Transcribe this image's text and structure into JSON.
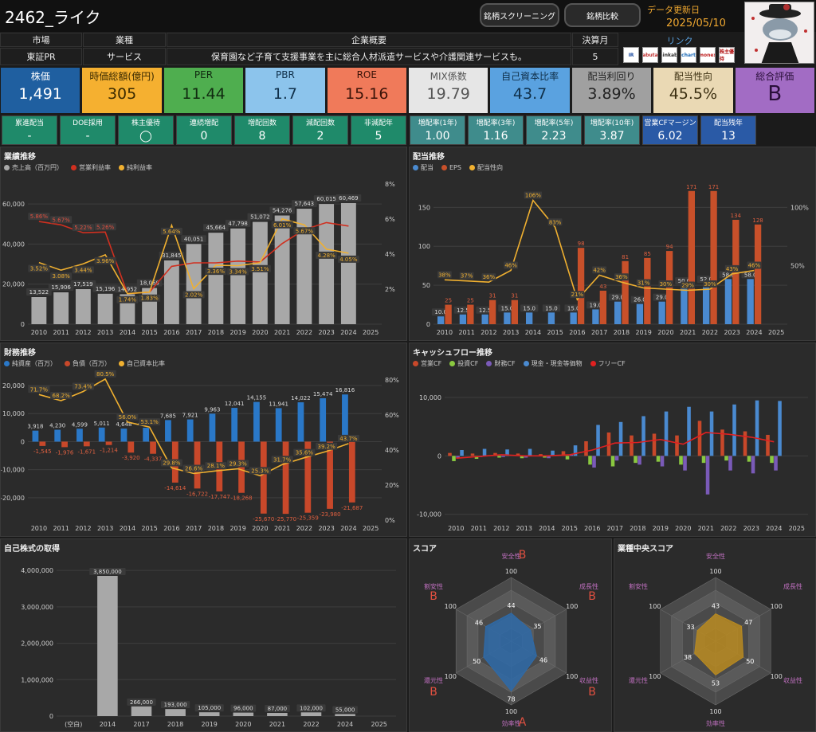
{
  "header": {
    "title": "2462_ライク",
    "screening_label": "銘柄スクリーニング",
    "compare_label": "銘柄比較",
    "update_label": "データ更新日",
    "update_date": "2025/05/10"
  },
  "info": {
    "market_h": "市場",
    "market_v": "東証PR",
    "industry_h": "業種",
    "industry_v": "サービス",
    "overview_h": "企業概要",
    "overview_v": "保育園など子育て支援事業を主に総合人材派遣サービスや介護関連サービスも。",
    "fiscal_h": "決算月",
    "fiscal_v": "5",
    "link_h": "リンク",
    "link_icons": [
      "IR",
      "kabutan",
      "minkabu",
      "chart",
      "monex",
      "株主優待"
    ]
  },
  "metrics": [
    {
      "label": "株価",
      "value": "1,491",
      "bg": "#1f5fa0",
      "fg": "#ffffff"
    },
    {
      "label": "時価総額(億円)",
      "value": "305",
      "bg": "#f5b030",
      "fg": "#3a2a00"
    },
    {
      "label": "PER",
      "value": "11.44",
      "bg": "#4fae4f",
      "fg": "#102a10"
    },
    {
      "label": "PBR",
      "value": "1.7",
      "bg": "#8cc4ec",
      "fg": "#10304a"
    },
    {
      "label": "ROE",
      "value": "15.16",
      "bg": "#f07a5a",
      "fg": "#3a1308"
    },
    {
      "label": "MIX係数",
      "value": "19.79",
      "bg": "#e6e6e6",
      "fg": "#555555"
    },
    {
      "label": "自己資本比率",
      "value": "43.7",
      "bg": "#5aa2e0",
      "fg": "#10304a"
    },
    {
      "label": "配当利回り",
      "value": "3.89%",
      "bg": "#a0a0a0",
      "fg": "#222222"
    },
    {
      "label": "配当性向",
      "value": "45.5%",
      "bg": "#ead9b4",
      "fg": "#3a2e10"
    },
    {
      "label": "総合評価",
      "value": "B",
      "bg": "#a26cc4",
      "fg": "#2a0f3a"
    }
  ],
  "kpis": [
    {
      "label": "累進配当",
      "value": "-",
      "bg": "#1f8a6a"
    },
    {
      "label": "DOE採用",
      "value": "-",
      "bg": "#1f8a6a"
    },
    {
      "label": "株主優待",
      "value": "◯",
      "bg": "#1f8a6a"
    },
    {
      "label": "連続増配",
      "value": "0",
      "bg": "#1f8a6a"
    },
    {
      "label": "増配回数",
      "value": "8",
      "bg": "#1f8a6a"
    },
    {
      "label": "減配回数",
      "value": "2",
      "bg": "#1f8a6a"
    },
    {
      "label": "非減配年",
      "value": "5",
      "bg": "#1f8a6a"
    },
    {
      "label": "増配率(1年)",
      "value": "1.00",
      "bg": "#3f8c8c"
    },
    {
      "label": "増配率(3年)",
      "value": "1.16",
      "bg": "#3f8c8c"
    },
    {
      "label": "増配率(5年)",
      "value": "2.23",
      "bg": "#3f8c8c"
    },
    {
      "label": "増配率(10年)",
      "value": "3.87",
      "bg": "#3f8c8c"
    },
    {
      "label": "営業CFマージン",
      "value": "6.02",
      "bg": "#2a5aa6"
    },
    {
      "label": "配当残年",
      "value": "13",
      "bg": "#2a5aa6"
    }
  ],
  "chart_data": [
    {
      "id": "performance",
      "type": "bar",
      "title": "業績推移",
      "categories": [
        "2010",
        "2011",
        "2012",
        "2013",
        "2014",
        "2015",
        "2016",
        "2017",
        "2018",
        "2019",
        "2020",
        "2021",
        "2022",
        "2023",
        "2024",
        "2025"
      ],
      "series": [
        {
          "name": "売上高（百万円）",
          "values": [
            13522,
            15906,
            17519,
            15196,
            14952,
            18068,
            31845,
            40051,
            45664,
            47798,
            51072,
            54276,
            57643,
            60015,
            60469,
            null
          ],
          "color": "#a8a8a8"
        },
        {
          "name": "営業利益率",
          "values": [
            5.86,
            5.67,
            5.22,
            5.26,
            1.74,
            1.83,
            3.3,
            3.5,
            3.5,
            3.6,
            3.55,
            4.6,
            5.4,
            5.8,
            5.6,
            null
          ],
          "color": "#d03020"
        },
        {
          "name": "純利益率",
          "values": [
            3.52,
            3.08,
            3.44,
            3.96,
            1.74,
            1.83,
            5.64,
            2.02,
            3.36,
            3.34,
            3.51,
            6.01,
            5.67,
            4.28,
            4.05,
            null
          ],
          "color": "#f0b030"
        }
      ],
      "ylim": [
        0,
        70000
      ],
      "y2lim": [
        0,
        8
      ],
      "yticks": [
        "0",
        "20,000",
        "40,000",
        "60,000"
      ],
      "y2ticks": [
        "2%",
        "4%",
        "6%",
        "8%"
      ],
      "labels": {
        "sales": [
          "13,522",
          "15,906",
          "17,519",
          "15,196",
          "14,952",
          "18,068",
          "31,845",
          "40,051",
          "45,664",
          "47,798",
          "51,072",
          "54,276",
          "57,643",
          "60,015",
          "60,469"
        ],
        "op": [
          "5.86%",
          "5.67%",
          "5.22%",
          "5.26%"
        ],
        "net": [
          "3.52%",
          "3.08%",
          "3.44%",
          "3.96%",
          "1.74%",
          "1.83%",
          "5.64%",
          "2.02%",
          "3.36%",
          "3.34%",
          "3.51%",
          "6.01%",
          "5.67%",
          "4.28%",
          "4.05%"
        ]
      }
    },
    {
      "id": "dividend",
      "type": "bar",
      "title": "配当推移",
      "categories": [
        "2010",
        "2011",
        "2012",
        "2013",
        "2014",
        "2015",
        "2016",
        "2017",
        "2018",
        "2019",
        "2020",
        "2021",
        "2022",
        "2023",
        "2024",
        "2025"
      ],
      "series": [
        {
          "name": "配当",
          "values": [
            10,
            12.5,
            12.5,
            15,
            15,
            15,
            15,
            19,
            29,
            26,
            29,
            50,
            52,
            58,
            58,
            null
          ],
          "color": "#4a8ad0"
        },
        {
          "name": "EPS",
          "values": [
            25,
            25,
            31,
            31,
            null,
            null,
            98,
            43,
            81,
            85,
            94,
            171,
            171,
            134,
            128,
            null
          ],
          "color": "#c8502a"
        },
        {
          "name": "配当性向",
          "values": [
            38,
            37,
            36,
            46,
            106,
            83,
            21,
            42,
            36,
            31,
            30,
            29,
            30,
            43,
            46,
            null
          ],
          "color": "#f0b030"
        }
      ],
      "ylim": [
        0,
        180
      ],
      "y2lim": [
        0,
        120
      ],
      "yticks": [
        "0",
        "50",
        "100",
        "150"
      ],
      "y2ticks": [
        "50%",
        "100%"
      ],
      "labels": {
        "div": [
          "10.0",
          "12.5",
          "12.5",
          "15.0",
          "15.0",
          "15.0",
          "15.0",
          "19.0",
          "29.0",
          "26.0",
          "29.0",
          "50.0",
          "52.0",
          "58.0",
          "58.0"
        ],
        "eps": [
          "25",
          "25",
          "31",
          "31",
          "",
          "",
          "98",
          "43",
          "81",
          "85",
          "94",
          "171",
          "171",
          "134",
          "128"
        ],
        "pr": [
          "38%",
          "37%",
          "36%",
          "46%",
          "106%",
          "83%",
          "21%",
          "42%",
          "36%",
          "31%",
          "30%",
          "29%",
          "30%",
          "43%",
          "46%"
        ]
      }
    },
    {
      "id": "finance",
      "type": "bar",
      "title": "財務推移",
      "categories": [
        "2010",
        "2011",
        "2012",
        "2013",
        "2014",
        "2015",
        "2016",
        "2017",
        "2018",
        "2019",
        "2020",
        "2021",
        "2022",
        "2023",
        "2024",
        "2025"
      ],
      "series": [
        {
          "name": "純資産（百万）",
          "values": [
            3918,
            4230,
            4599,
            5011,
            4648,
            4942,
            7685,
            7921,
            9963,
            12041,
            14155,
            11941,
            14022,
            15474,
            16816,
            null
          ],
          "color": "#2a78c8"
        },
        {
          "name": "負債（百万）",
          "values": [
            -1545,
            -1976,
            -1671,
            -1214,
            -3920,
            -4337,
            -14614,
            -16722,
            -17747,
            -18268,
            -25670,
            -25770,
            -25359,
            -23980,
            -21687,
            null
          ],
          "color": "#c8482a"
        },
        {
          "name": "自己資本比率",
          "values": [
            71.7,
            68.2,
            73.4,
            80.5,
            56.0,
            53.1,
            29.8,
            26.6,
            28.1,
            29.3,
            25.3,
            31.7,
            35.6,
            39.2,
            43.7,
            null
          ],
          "color": "#f0b030"
        }
      ],
      "ylim": [
        -28000,
        22000
      ],
      "y2lim": [
        0,
        80
      ],
      "yticks": [
        "-20,000",
        "-10,000",
        "0",
        "10,000",
        "20,000"
      ],
      "y2ticks": [
        "0%",
        "20%",
        "40%",
        "60%",
        "80%"
      ],
      "labels": {
        "eq": [
          "3,918",
          "4,230",
          "4,599",
          "5,011",
          "4,648",
          "4,942",
          "7,685",
          "7,921",
          "9,963",
          "12,041",
          "14,155",
          "11,941",
          "14,022",
          "15,474",
          "16,816"
        ],
        "li": [
          "-1,545",
          "-1,976",
          "-1,671",
          "-1,214",
          "-3,920",
          "-4,337",
          "-14,614",
          "-16,722",
          "-17,747",
          "-18,268",
          "-25,670",
          "-25,770",
          "-25,359",
          "-23,980",
          "-21,687"
        ],
        "ratio": [
          "71.7%",
          "68.2%",
          "73.4%",
          "80.5%",
          "56.0%",
          "53.1%",
          "29.8%",
          "26.6%",
          "28.1%",
          "29.3%",
          "25.3%",
          "31.7%",
          "35.6%",
          "39.2%",
          "43.7%"
        ]
      }
    },
    {
      "id": "cashflow",
      "type": "bar",
      "title": "キャッシュフロー推移",
      "categories": [
        "2010",
        "2011",
        "2012",
        "2013",
        "2014",
        "2015",
        "2016",
        "2017",
        "2018",
        "2019",
        "2020",
        "2021",
        "2022",
        "2023",
        "2024",
        "2025"
      ],
      "series": [
        {
          "name": "営業CF",
          "values": [
            500,
            400,
            500,
            400,
            300,
            800,
            2500,
            4000,
            3500,
            3800,
            3500,
            6000,
            4500,
            4200,
            3600,
            null
          ],
          "color": "#c8482a"
        },
        {
          "name": "投資CF",
          "values": [
            -900,
            -500,
            -300,
            -400,
            -300,
            -600,
            -1500,
            -1800,
            -1200,
            -1000,
            -1500,
            -1200,
            -800,
            -1000,
            -1200,
            null
          ],
          "color": "#8ac840"
        },
        {
          "name": "財務CF",
          "values": [
            -300,
            -200,
            -200,
            -300,
            -400,
            200,
            -2000,
            -800,
            -1500,
            -1800,
            -2500,
            -6600,
            -2500,
            -3000,
            -2500,
            null
          ],
          "color": "#7a5ab8"
        },
        {
          "name": "現金・現金等価物",
          "values": [
            1000,
            1200,
            1100,
            1200,
            900,
            1800,
            5300,
            5800,
            6800,
            7600,
            8400,
            7600,
            8800,
            9500,
            9400,
            null
          ],
          "color": "#4a8ad0"
        },
        {
          "name": "フリーCF",
          "values": [
            -400,
            -100,
            200,
            0,
            0,
            200,
            1000,
            2200,
            2300,
            2800,
            2000,
            4000,
            3700,
            3200,
            2400,
            null
          ],
          "color": "#e02020"
        }
      ],
      "ylim": [
        -11000,
        13000
      ],
      "yticks": [
        "-10,000",
        "0",
        "10,000"
      ]
    },
    {
      "id": "buyback",
      "type": "bar",
      "title": "自己株式の取得",
      "categories": [
        "(空白)",
        "2014",
        "2017",
        "2018",
        "2019",
        "2020",
        "2021",
        "2022",
        "2024",
        "2025"
      ],
      "series": [
        {
          "name": "",
          "values": [
            null,
            3850000,
            266000,
            193000,
            105000,
            96000,
            87000,
            102000,
            55000,
            null
          ],
          "color": "#a8a8a8"
        }
      ],
      "ylim": [
        0,
        4200000
      ],
      "yticks": [
        "0",
        "1,000,000",
        "2,000,000",
        "3,000,000",
        "4,000,000"
      ],
      "labels": [
        "",
        "3,850,000",
        "266,000",
        "193,000",
        "105,000",
        "96,000",
        "87,000",
        "102,000",
        "55,000",
        ""
      ]
    }
  ],
  "radars": [
    {
      "title": "スコア",
      "axes": [
        "安全性",
        "成長性",
        "収益性",
        "効率性",
        "還元性",
        "割安性"
      ],
      "values": [
        44,
        35,
        46,
        78,
        50,
        46
      ],
      "max": 100,
      "grades": [
        "B",
        "B",
        "B",
        "A",
        "B",
        "B"
      ],
      "fill": "#2e6aa8"
    },
    {
      "title": "業種中央スコア",
      "axes": [
        "安全性",
        "成長性",
        "収益性",
        "効率性",
        "還元性",
        "割安性"
      ],
      "values": [
        43,
        47,
        50,
        53,
        38,
        33
      ],
      "max": 100,
      "grades": [
        "",
        "",
        "",
        "",
        "",
        ""
      ],
      "fill": "#b88a20"
    }
  ],
  "radar_max_label": "100"
}
